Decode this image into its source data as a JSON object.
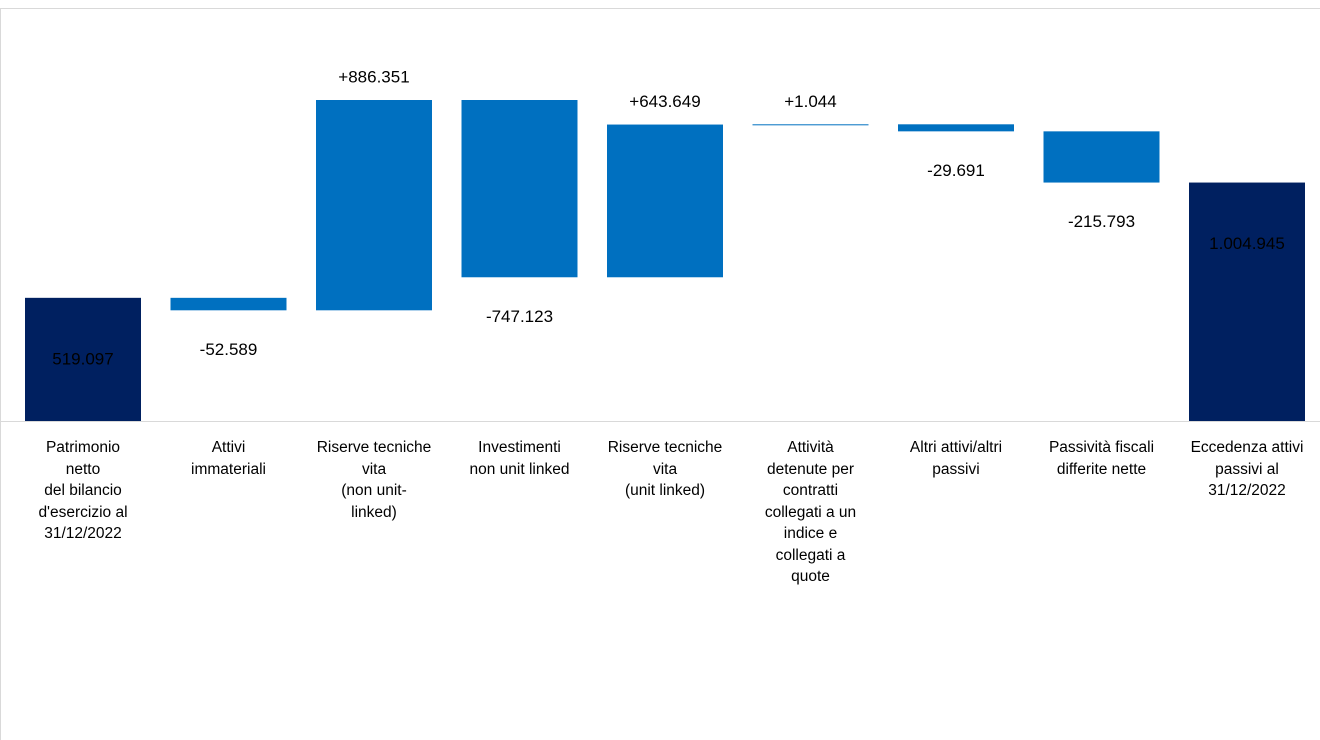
{
  "chart_data": {
    "type": "waterfall",
    "categories": [
      "Patrimonio\nnetto\ndel bilancio\nd'esercizio al\n31/12/2022",
      "Attivi\nimmateriali",
      "Riserve tecniche\nvita\n(non unit-\nlinked)",
      "Investimenti\nnon unit linked",
      "Riserve tecniche\nvita\n(unit linked)",
      "Attività\ndetenute per\ncontratti\ncollegati a un\nindice e\ncollegati a\nquote",
      "Altri attivi/altri\npassivi",
      "Passività fiscali\ndifferite nette",
      "Eccedenza attivi\npassivi al\n31/12/2022"
    ],
    "measures": [
      "absolute",
      "relative",
      "relative",
      "relative",
      "relative",
      "relative",
      "relative",
      "relative",
      "absolute"
    ],
    "values": [
      519097,
      -52589,
      886351,
      -747123,
      643649,
      1044,
      -29691,
      -215793,
      1004945
    ],
    "value_labels": [
      "519.097",
      "-52.589",
      "+886.351",
      "-747.123",
      "+643.649",
      "+1.044",
      "-29.691",
      "-215.793",
      "1.004.945"
    ],
    "total_color": "#002060",
    "change_color": "#0070c0"
  }
}
